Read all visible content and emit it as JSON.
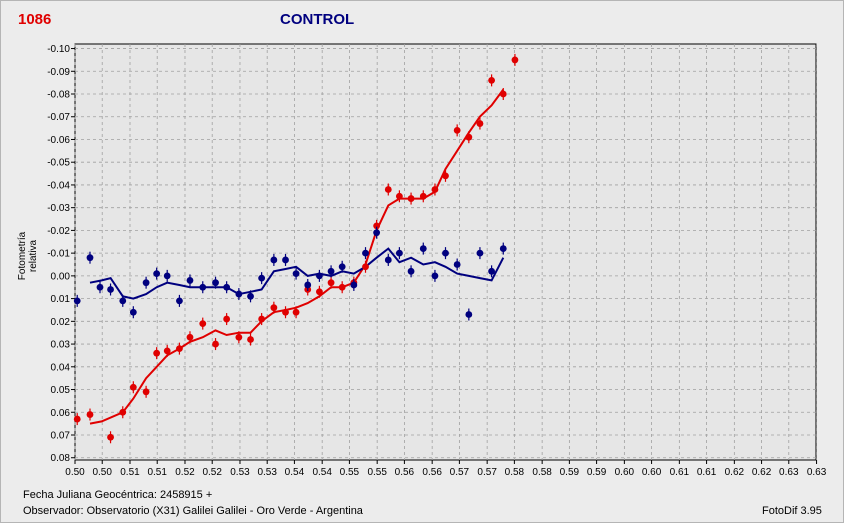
{
  "header": {
    "id": "1086",
    "title": "CONTROL"
  },
  "footer": {
    "date_line": "Fecha Juliana Geocéntrica: 2458915 +",
    "observer_line": "Observador: Observatorio (X31) Galilei Galilei - Oro Verde - Argentina",
    "software": "FotoDif 3.95"
  },
  "colors": {
    "target": "#e00000",
    "control": "#00007f",
    "plot_bg": "#e6e6e6",
    "grid": "#a0a0a0"
  },
  "chart_data": {
    "type": "scatter",
    "title": "CONTROL",
    "xlabel": "Fecha Juliana Geocéntrica: 2458915 +",
    "ylabel": "Fotometría relativa",
    "xlim": [
      0.4997,
      0.6331
    ],
    "ylim": [
      0.081,
      -0.102
    ],
    "y_inverted": true,
    "grid": true,
    "x_tick_values": [
      0.4997,
      0.5046,
      0.5096,
      0.5145,
      0.5195,
      0.5244,
      0.5294,
      0.5343,
      0.5392,
      0.5442,
      0.5491,
      0.5541,
      0.559,
      0.564,
      0.5689,
      0.5739,
      0.5788,
      0.5838,
      0.5887,
      0.5936,
      0.5986,
      0.6035,
      0.6085,
      0.6134,
      0.6184,
      0.6233,
      0.6282,
      0.6332
    ],
    "x_tick_labels": [
      "0.50",
      "0.50",
      "0.51",
      "0.51",
      "0.52",
      "0.52",
      "0.53",
      "0.53",
      "0.54",
      "0.54",
      "0.55",
      "0.55",
      "0.56",
      "0.56",
      "0.57",
      "0.57",
      "0.58",
      "0.58",
      "0.59",
      "0.59",
      "0.60",
      "0.60",
      "0.61",
      "0.61",
      "0.62",
      "0.62",
      "0.63",
      "0.63"
    ],
    "y_tick_values": [
      -0.1,
      -0.09,
      -0.08,
      -0.07,
      -0.06,
      -0.05,
      -0.04,
      -0.03,
      -0.02,
      -0.01,
      0.0,
      0.01,
      0.02,
      0.03,
      0.04,
      0.05,
      0.06,
      0.07,
      0.08
    ],
    "y_tick_labels": [
      "-0.10",
      "-0.09",
      "-0.08",
      "-0.07",
      "-0.06",
      "-0.05",
      "-0.04",
      "-0.03",
      "-0.02",
      "-0.01",
      "0.00",
      "0.01",
      "0.02",
      "0.03",
      "0.04",
      "0.05",
      "0.06",
      "0.07",
      "0.08"
    ],
    "series": [
      {
        "key": "target",
        "color": "#e00000",
        "points": [
          [
            0.5001,
            0.063
          ],
          [
            0.5024,
            0.061
          ],
          [
            0.5061,
            0.071
          ],
          [
            0.5083,
            0.06
          ],
          [
            0.5102,
            0.049
          ],
          [
            0.5125,
            0.051
          ],
          [
            0.5144,
            0.034
          ],
          [
            0.5163,
            0.033
          ],
          [
            0.5185,
            0.032
          ],
          [
            0.5204,
            0.027
          ],
          [
            0.5227,
            0.021
          ],
          [
            0.525,
            0.03
          ],
          [
            0.527,
            0.019
          ],
          [
            0.5292,
            0.027
          ],
          [
            0.5313,
            0.028
          ],
          [
            0.5333,
            0.019
          ],
          [
            0.5355,
            0.014
          ],
          [
            0.5376,
            0.016
          ],
          [
            0.5395,
            0.016
          ],
          [
            0.5416,
            0.006
          ],
          [
            0.5437,
            0.007
          ],
          [
            0.5458,
            0.003
          ],
          [
            0.5478,
            0.005
          ],
          [
            0.5499,
            0.003
          ],
          [
            0.552,
            -0.004
          ],
          [
            0.554,
            -0.022
          ],
          [
            0.5561,
            -0.038
          ],
          [
            0.5581,
            -0.035
          ],
          [
            0.5602,
            -0.034
          ],
          [
            0.5624,
            -0.035
          ],
          [
            0.5645,
            -0.038
          ],
          [
            0.5664,
            -0.044
          ],
          [
            0.5685,
            -0.064
          ],
          [
            0.5706,
            -0.061
          ],
          [
            0.5726,
            -0.067
          ],
          [
            0.5747,
            -0.086
          ],
          [
            0.5768,
            -0.08
          ],
          [
            0.5789,
            -0.095
          ]
        ],
        "smooth": [
          [
            0.5024,
            0.065
          ],
          [
            0.5045,
            0.064
          ],
          [
            0.5083,
            0.06
          ],
          [
            0.5102,
            0.054
          ],
          [
            0.5125,
            0.045
          ],
          [
            0.5144,
            0.04
          ],
          [
            0.5163,
            0.035
          ],
          [
            0.5185,
            0.032
          ],
          [
            0.5204,
            0.029
          ],
          [
            0.5227,
            0.027
          ],
          [
            0.525,
            0.024
          ],
          [
            0.527,
            0.026
          ],
          [
            0.5292,
            0.025
          ],
          [
            0.5313,
            0.025
          ],
          [
            0.5333,
            0.02
          ],
          [
            0.5355,
            0.016
          ],
          [
            0.5376,
            0.015
          ],
          [
            0.5395,
            0.014
          ],
          [
            0.5416,
            0.012
          ],
          [
            0.5437,
            0.009
          ],
          [
            0.5458,
            0.005
          ],
          [
            0.5478,
            0.005
          ],
          [
            0.5499,
            0.003
          ],
          [
            0.552,
            -0.005
          ],
          [
            0.554,
            -0.02
          ],
          [
            0.5561,
            -0.031
          ],
          [
            0.5581,
            -0.034
          ],
          [
            0.5602,
            -0.034
          ],
          [
            0.5624,
            -0.034
          ],
          [
            0.5645,
            -0.037
          ],
          [
            0.5664,
            -0.047
          ],
          [
            0.5685,
            -0.055
          ],
          [
            0.5706,
            -0.063
          ],
          [
            0.5726,
            -0.07
          ],
          [
            0.5747,
            -0.075
          ],
          [
            0.5768,
            -0.082
          ]
        ]
      },
      {
        "key": "control",
        "color": "#00007f",
        "points": [
          [
            0.5001,
            0.011
          ],
          [
            0.5024,
            -0.008
          ],
          [
            0.5042,
            0.005
          ],
          [
            0.5061,
            0.006
          ],
          [
            0.5083,
            0.011
          ],
          [
            0.5102,
            0.016
          ],
          [
            0.5125,
            0.003
          ],
          [
            0.5144,
            -0.001
          ],
          [
            0.5163,
            0.0
          ],
          [
            0.5185,
            0.011
          ],
          [
            0.5204,
            0.002
          ],
          [
            0.5227,
            0.005
          ],
          [
            0.525,
            0.003
          ],
          [
            0.527,
            0.005
          ],
          [
            0.5292,
            0.008
          ],
          [
            0.5313,
            0.009
          ],
          [
            0.5333,
            0.001
          ],
          [
            0.5355,
            -0.007
          ],
          [
            0.5376,
            -0.007
          ],
          [
            0.5395,
            -0.001
          ],
          [
            0.5416,
            0.004
          ],
          [
            0.5437,
            0.0
          ],
          [
            0.5458,
            -0.002
          ],
          [
            0.5478,
            -0.004
          ],
          [
            0.5499,
            0.004
          ],
          [
            0.552,
            -0.01
          ],
          [
            0.554,
            -0.019
          ],
          [
            0.5561,
            -0.007
          ],
          [
            0.5581,
            -0.01
          ],
          [
            0.5602,
            -0.002
          ],
          [
            0.5624,
            -0.012
          ],
          [
            0.5645,
            0.0
          ],
          [
            0.5664,
            -0.01
          ],
          [
            0.5685,
            -0.005
          ],
          [
            0.5706,
            0.017
          ],
          [
            0.5726,
            -0.01
          ],
          [
            0.5747,
            -0.002
          ],
          [
            0.5768,
            -0.012
          ]
        ],
        "smooth": [
          [
            0.5024,
            0.003
          ],
          [
            0.5045,
            0.002
          ],
          [
            0.5061,
            0.001
          ],
          [
            0.5083,
            0.009
          ],
          [
            0.5102,
            0.01
          ],
          [
            0.5125,
            0.008
          ],
          [
            0.5144,
            0.005
          ],
          [
            0.5163,
            0.003
          ],
          [
            0.5185,
            0.004
          ],
          [
            0.5204,
            0.005
          ],
          [
            0.5227,
            0.005
          ],
          [
            0.525,
            0.005
          ],
          [
            0.527,
            0.005
          ],
          [
            0.5292,
            0.008
          ],
          [
            0.5313,
            0.007
          ],
          [
            0.5333,
            0.006
          ],
          [
            0.5355,
            -0.002
          ],
          [
            0.5376,
            -0.003
          ],
          [
            0.5395,
            -0.004
          ],
          [
            0.5416,
            0.0
          ],
          [
            0.5437,
            -0.001
          ],
          [
            0.5458,
            0.0
          ],
          [
            0.5478,
            -0.002
          ],
          [
            0.5499,
            -0.001
          ],
          [
            0.552,
            -0.004
          ],
          [
            0.554,
            -0.008
          ],
          [
            0.5561,
            -0.012
          ],
          [
            0.5581,
            -0.006
          ],
          [
            0.5602,
            -0.008
          ],
          [
            0.5624,
            -0.005
          ],
          [
            0.5645,
            -0.006
          ],
          [
            0.5664,
            -0.004
          ],
          [
            0.5685,
            -0.001
          ],
          [
            0.5706,
            0.0
          ],
          [
            0.5726,
            0.001
          ],
          [
            0.5747,
            0.002
          ],
          [
            0.5768,
            -0.008
          ]
        ]
      }
    ]
  }
}
